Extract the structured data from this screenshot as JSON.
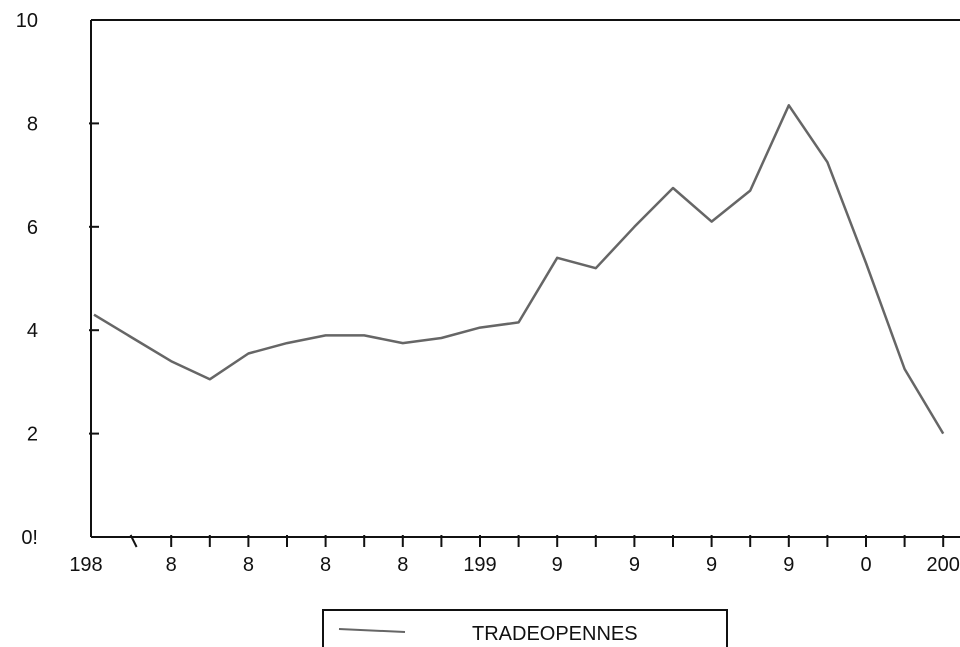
{
  "chart_data": {
    "type": "line",
    "title": "",
    "xlabel": "",
    "ylabel": "",
    "ylim": [
      0,
      10
    ],
    "y_ticks": [
      0,
      2,
      4,
      6,
      8,
      10
    ],
    "y_tick_labels": [
      "0!",
      "2",
      "4",
      "6",
      "8",
      "10"
    ],
    "x_tick_labels": [
      "198",
      "8",
      "8",
      "8",
      "8",
      "199",
      "9",
      "9",
      "9",
      "9",
      "0",
      "200"
    ],
    "x": [
      1980,
      1981,
      1982,
      1983,
      1984,
      1985,
      1986,
      1987,
      1988,
      1989,
      1990,
      1991,
      1992,
      1993,
      1994,
      1995,
      1996,
      1997,
      1998,
      1999,
      2000,
      2001,
      2002,
      2003
    ],
    "grid": false,
    "legend_position": "bottom-center",
    "series": [
      {
        "name": "TRADEOPENNES",
        "color": "#666666",
        "values": [
          4.3,
          3.85,
          3.4,
          3.05,
          3.55,
          3.75,
          3.9,
          3.9,
          3.75,
          3.85,
          4.05,
          4.15,
          5.4,
          5.2,
          6.0,
          6.75,
          6.1,
          6.7,
          8.35,
          7.25,
          5.3,
          3.25,
          2.0,
          null
        ]
      }
    ]
  }
}
